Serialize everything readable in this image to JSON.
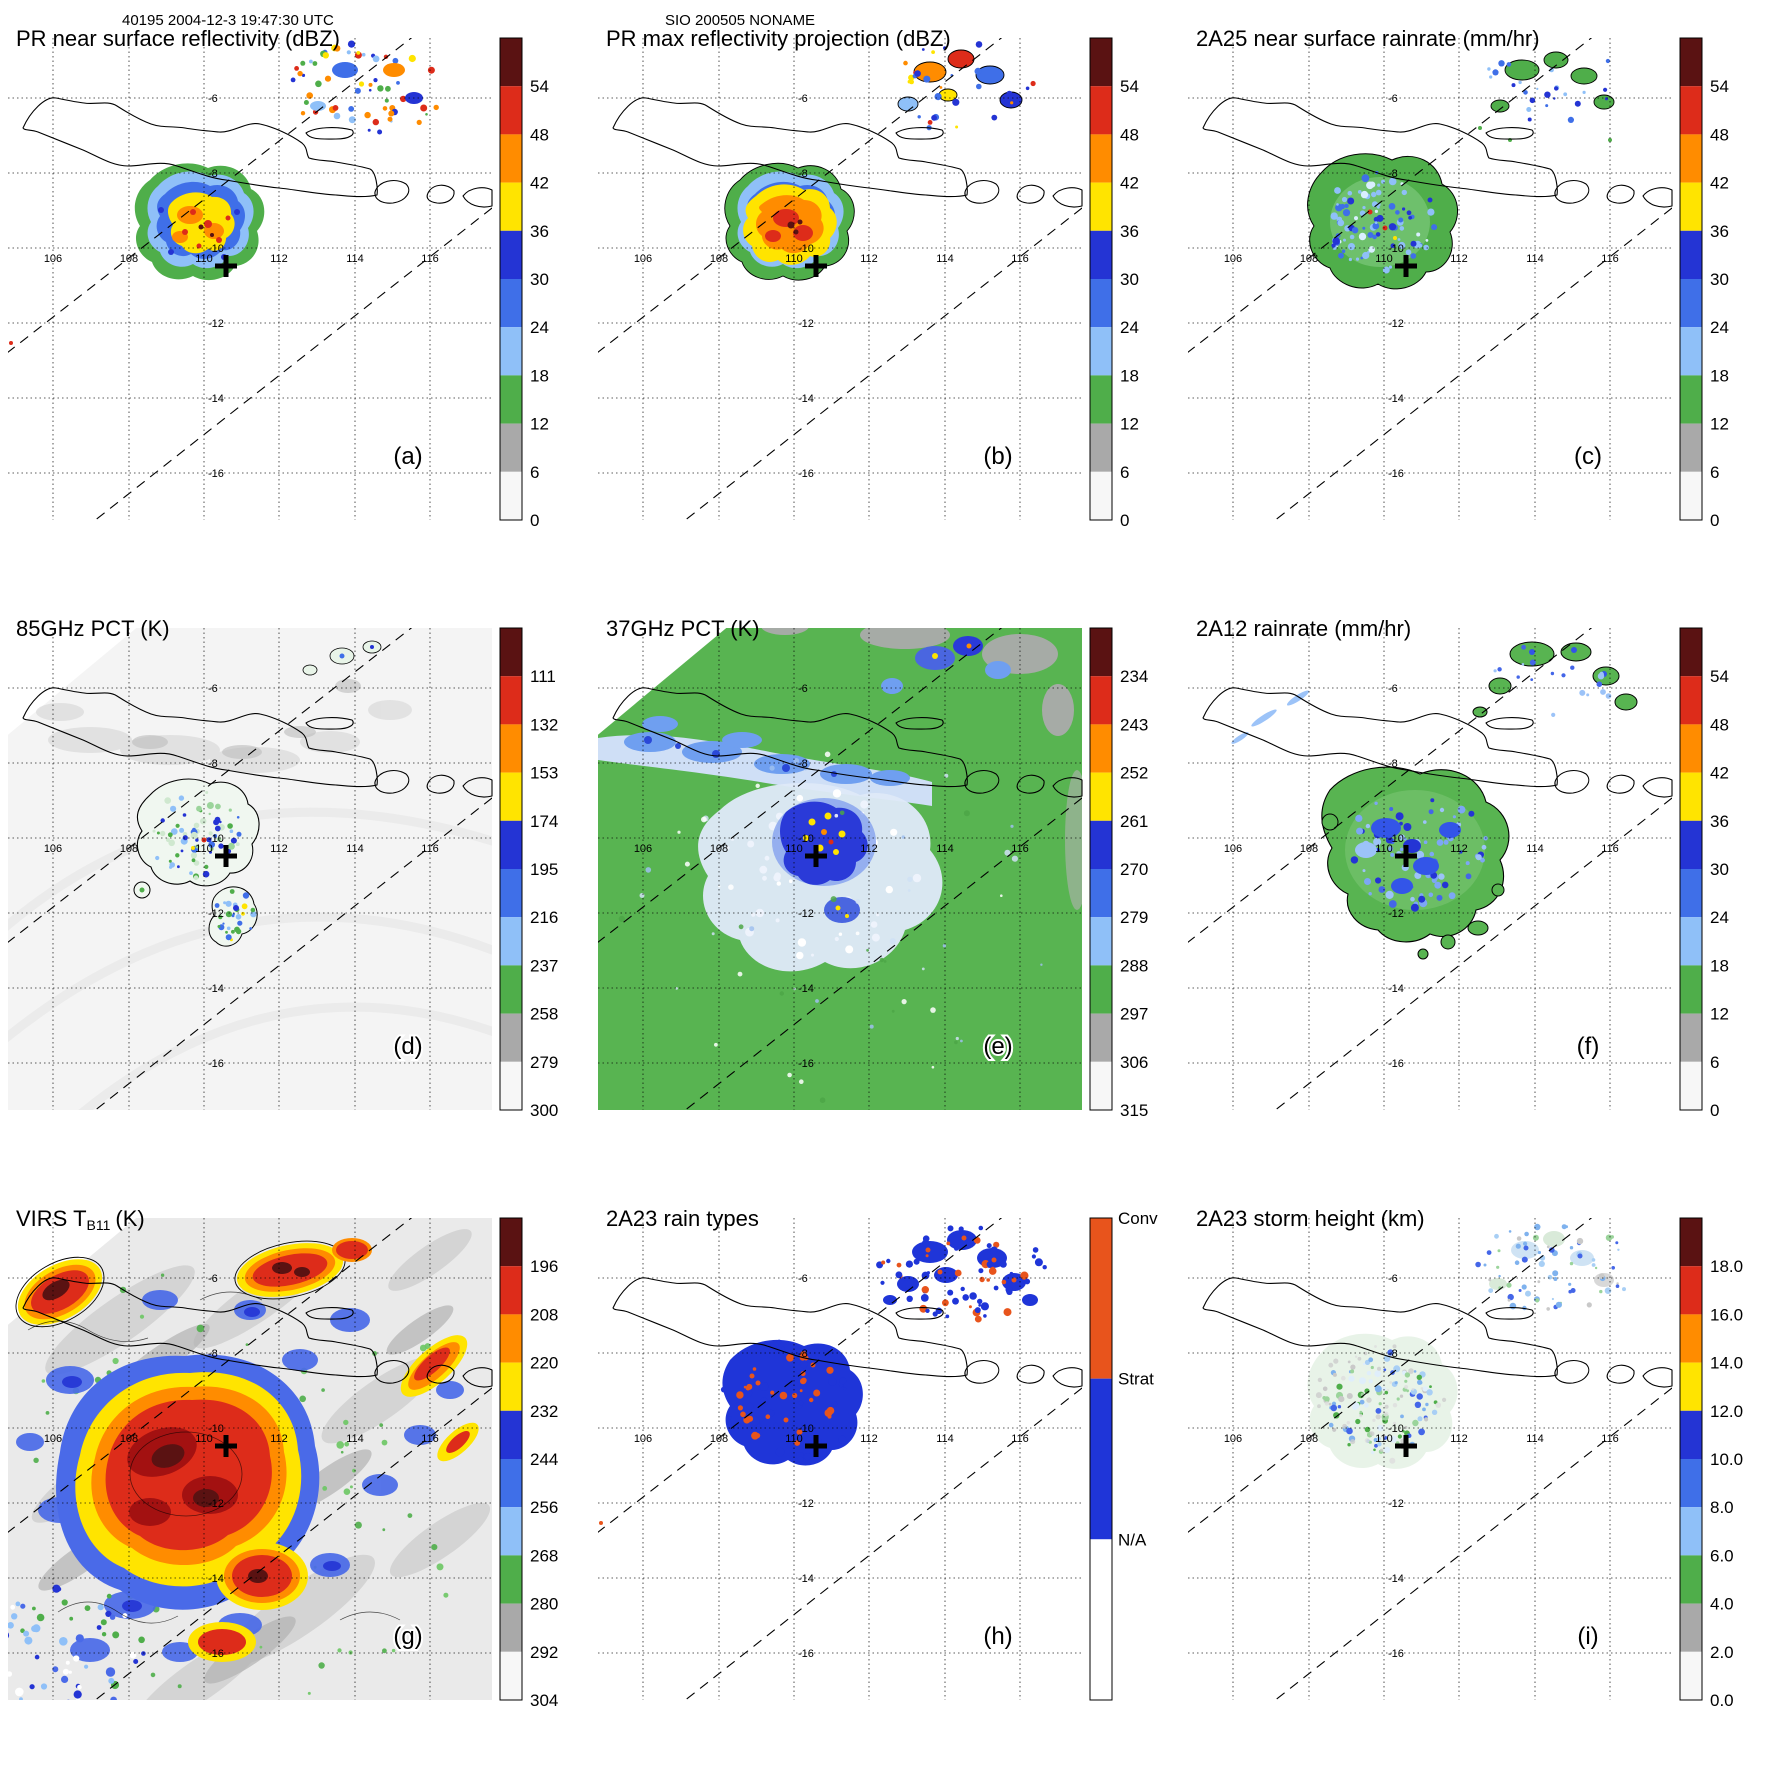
{
  "header": {
    "left": "40195 2004-12-3 19:47:30 UTC",
    "center": "SIO 200505 NONAME"
  },
  "map": {
    "lon_labels": [
      "106",
      "108",
      "110",
      "112",
      "114",
      "116"
    ],
    "lat_labels": [
      "-6",
      "-8",
      "-10",
      "-12",
      "-14",
      "-16"
    ]
  },
  "panels": [
    {
      "id": "a",
      "letter": "(a)",
      "title": "PR near surface reflectivity (dBZ)",
      "colorbar": {
        "ticks": [
          "54",
          "48",
          "42",
          "36",
          "30",
          "24",
          "18",
          "12",
          "6",
          "0"
        ],
        "colors": [
          "#5a1212",
          "#dd2c1a",
          "#ff8c00",
          "#ffe400",
          "#2434d4",
          "#3f6fe8",
          "#8fc0f8",
          "#4fae4a",
          "#a9a9a9",
          "#f7f7f7"
        ]
      }
    },
    {
      "id": "b",
      "letter": "(b)",
      "title": "PR max reflectivity projection (dBZ)",
      "colorbar": {
        "ticks": [
          "54",
          "48",
          "42",
          "36",
          "30",
          "24",
          "18",
          "12",
          "6",
          "0"
        ],
        "colors": [
          "#5a1212",
          "#dd2c1a",
          "#ff8c00",
          "#ffe400",
          "#2434d4",
          "#3f6fe8",
          "#8fc0f8",
          "#4fae4a",
          "#a9a9a9",
          "#f7f7f7"
        ]
      }
    },
    {
      "id": "c",
      "letter": "(c)",
      "title": "2A25 near surface rainrate (mm/hr)",
      "colorbar": {
        "ticks": [
          "54",
          "48",
          "42",
          "36",
          "30",
          "24",
          "18",
          "12",
          "6",
          "0"
        ],
        "colors": [
          "#5a1212",
          "#dd2c1a",
          "#ff8c00",
          "#ffe400",
          "#2434d4",
          "#3f6fe8",
          "#8fc0f8",
          "#4fae4a",
          "#a9a9a9",
          "#f7f7f7"
        ]
      }
    },
    {
      "id": "d",
      "letter": "(d)",
      "title": "85GHz PCT (K)",
      "colorbar": {
        "ticks": [
          "111",
          "132",
          "153",
          "174",
          "195",
          "216",
          "237",
          "258",
          "279",
          "300"
        ],
        "colors": [
          "#5a1212",
          "#dd2c1a",
          "#ff8c00",
          "#ffe400",
          "#2434d4",
          "#3f6fe8",
          "#8fc0f8",
          "#4fae4a",
          "#a9a9a9",
          "#f7f7f7"
        ]
      }
    },
    {
      "id": "e",
      "letter": "(e)",
      "title": "37GHz PCT (K)",
      "colorbar": {
        "ticks": [
          "234",
          "243",
          "252",
          "261",
          "270",
          "279",
          "288",
          "297",
          "306",
          "315"
        ],
        "colors": [
          "#5a1212",
          "#dd2c1a",
          "#ff8c00",
          "#ffe400",
          "#2434d4",
          "#3f6fe8",
          "#8fc0f8",
          "#4fae4a",
          "#a9a9a9",
          "#f7f7f7"
        ]
      }
    },
    {
      "id": "f",
      "letter": "(f)",
      "title": "2A12 rainrate (mm/hr)",
      "colorbar": {
        "ticks": [
          "54",
          "48",
          "42",
          "36",
          "30",
          "24",
          "18",
          "12",
          "6",
          "0"
        ],
        "colors": [
          "#5a1212",
          "#dd2c1a",
          "#ff8c00",
          "#ffe400",
          "#2434d4",
          "#3f6fe8",
          "#8fc0f8",
          "#4fae4a",
          "#a9a9a9",
          "#f7f7f7"
        ]
      }
    },
    {
      "id": "g",
      "letter": "(g)",
      "title": "VIRS T_B11 (K)",
      "title_pre": "VIRS T",
      "title_sub": "B11",
      "title_post": "(K)",
      "colorbar": {
        "ticks": [
          "196",
          "208",
          "220",
          "232",
          "244",
          "256",
          "268",
          "280",
          "292",
          "304"
        ],
        "colors": [
          "#5a1212",
          "#dd2c1a",
          "#ff8c00",
          "#ffe400",
          "#2434d4",
          "#3f6fe8",
          "#8fc0f8",
          "#4fae4a",
          "#a9a9a9",
          "#f7f7f7"
        ]
      }
    },
    {
      "id": "h",
      "letter": "(h)",
      "title": "2A23 rain types",
      "colorbar": {
        "type": "categorical",
        "labels": [
          "Conv",
          "Strat",
          "N/A"
        ],
        "colors": [
          "#e8541c",
          "#1f35d8",
          "#ffffff"
        ]
      }
    },
    {
      "id": "i",
      "letter": "(i)",
      "title": "2A23 storm height (km)",
      "colorbar": {
        "ticks": [
          "18.0",
          "16.0",
          "14.0",
          "12.0",
          "10.0",
          "8.0",
          "6.0",
          "4.0",
          "2.0",
          "0.0"
        ],
        "colors": [
          "#5a1212",
          "#dd2c1a",
          "#ff8c00",
          "#ffe400",
          "#2434d4",
          "#3f6fe8",
          "#8fc0f8",
          "#4fae4a",
          "#a9a9a9",
          "#f7f7f7"
        ]
      }
    }
  ],
  "chart_data": [
    {
      "panel": "a",
      "type": "heatmap",
      "title": "PR near surface reflectivity (dBZ)",
      "units": "dBZ",
      "colorbar_ticks": [
        54,
        48,
        42,
        36,
        30,
        24,
        18,
        12,
        6,
        0
      ],
      "lon_ticks": [
        106,
        108,
        110,
        112,
        114,
        116
      ],
      "lat_ticks": [
        -6,
        -8,
        -10,
        -12,
        -14,
        -16
      ],
      "lon_range": [
        104.8,
        117.6
      ],
      "lat_range": [
        -17.2,
        -4.4
      ],
      "features": [
        "convective storm near 110.3E 10.3S with 36-54 dBZ core and 12-30 dBZ fringe",
        "scattered 12-48 dBZ cells near 113-116E 5-7S",
        "black cross marker near 110.6E 10.5S",
        "dashed lines mark swath edges"
      ]
    },
    {
      "panel": "b",
      "type": "heatmap",
      "title": "PR max reflectivity projection (dBZ)",
      "units": "dBZ",
      "colorbar_ticks": [
        54,
        48,
        42,
        36,
        30,
        24,
        18,
        12,
        6,
        0
      ],
      "lon_ticks": [
        106,
        108,
        110,
        112,
        114,
        116
      ],
      "lat_ticks": [
        -6,
        -8,
        -10,
        -12,
        -14,
        -16
      ],
      "features": [
        "column-max reflectivity of same storm, mostly 36-54 dBZ (yellow-orange-red)",
        "stronger outlined cells near 113-116E 5-7S"
      ]
    },
    {
      "panel": "c",
      "type": "heatmap",
      "title": "2A25 near surface rainrate (mm/hr)",
      "units": "mm/hr",
      "colorbar_ticks": [
        54,
        48,
        42,
        36,
        30,
        24,
        18,
        12,
        6,
        0
      ],
      "lon_ticks": [
        106,
        108,
        110,
        112,
        114,
        116
      ],
      "lat_ticks": [
        -6,
        -8,
        -10,
        -12,
        -14,
        -16
      ],
      "features": [
        "rain area mostly 0-6 mm/hr (green) with embedded 12-30 mm/hr blue speckles",
        "small outlined rain cells to the northeast"
      ]
    },
    {
      "panel": "d",
      "type": "heatmap",
      "title": "85GHz PCT (K)",
      "units": "K",
      "colorbar_ticks": [
        111,
        132,
        153,
        174,
        195,
        216,
        237,
        258,
        279,
        300
      ],
      "lon_ticks": [
        106,
        108,
        110,
        112,
        114,
        116
      ],
      "lat_ticks": [
        -6,
        -8,
        -10,
        -12,
        -14,
        -16
      ],
      "features": [
        "background 258-300 K (white-gray)",
        "scattering depression blob 174-258 K outlined near 110E 10.5S with trailing cells to the south"
      ]
    },
    {
      "panel": "e",
      "type": "heatmap",
      "title": "37GHz PCT (K)",
      "units": "K",
      "colorbar_ticks": [
        234,
        243,
        252,
        261,
        270,
        279,
        288,
        297,
        306,
        315
      ],
      "lon_ticks": [
        106,
        108,
        110,
        112,
        114,
        116
      ],
      "lat_ticks": [
        -6,
        -8,
        -10,
        -12,
        -14,
        -16
      ],
      "features": [
        "swath background 279-288 K (green)",
        "pale 270-279 K band along Java and broad depression around storm",
        "core 243-261 K (dark blue with yellow specks) near 110.5E 10.2S",
        "gray = missing/no data patches"
      ]
    },
    {
      "panel": "f",
      "type": "heatmap",
      "title": "2A12 rainrate (mm/hr)",
      "units": "mm/hr",
      "colorbar_ticks": [
        54,
        48,
        42,
        36,
        30,
        24,
        18,
        12,
        6,
        0
      ],
      "lon_ticks": [
        106,
        108,
        110,
        112,
        114,
        116
      ],
      "lat_ticks": [
        -6,
        -8,
        -10,
        -12,
        -14,
        -16
      ],
      "features": [
        "broad 0-6 mm/hr (green) rain shield with 12-30 mm/hr blue cells",
        "arc of outlined rain cells near 113-116E 5-7S"
      ]
    },
    {
      "panel": "g",
      "type": "heatmap",
      "title": "VIRS T_B11 (K)",
      "units": "K",
      "colorbar_ticks": [
        196,
        208,
        220,
        232,
        244,
        256,
        268,
        280,
        292,
        304
      ],
      "lon_ticks": [
        106,
        108,
        110,
        112,
        114,
        116
      ],
      "lat_ticks": [
        -6,
        -8,
        -10,
        -12,
        -14,
        -16
      ],
      "features": [
        "large cold cloud shield <208 K (red/dark red) centered near 109.5E 11S",
        "yellow-orange 208-232 K anvil rim, blue 232-256 K ring",
        "additional cold tops along north Java and northeast",
        "warm background 280-304 K (gray/white) with black contours"
      ]
    },
    {
      "panel": "h",
      "type": "categorical_map",
      "title": "2A23 rain types",
      "categories": [
        "Conv",
        "Strat",
        "N/A"
      ],
      "lon_ticks": [
        106,
        108,
        110,
        112,
        114,
        116
      ],
      "lat_ticks": [
        -6,
        -8,
        -10,
        -12,
        -14,
        -16
      ],
      "features": [
        "storm area mostly stratiform (blue) with scattered convective (orange) pixels",
        "northeast rain area mixed stratiform/convective"
      ]
    },
    {
      "panel": "i",
      "type": "heatmap",
      "title": "2A23 storm height (km)",
      "units": "km",
      "colorbar_ticks": [
        18,
        16,
        14,
        12,
        10,
        8,
        6,
        4,
        2,
        0
      ],
      "lon_ticks": [
        106,
        108,
        110,
        112,
        114,
        116
      ],
      "lat_ticks": [
        -6,
        -8,
        -10,
        -12,
        -14,
        -16
      ],
      "features": [
        "echo tops mostly 4-8 km (gray/green) with 8-12 km (light blue/blue) speckles",
        "similar speckled cells to the northeast"
      ]
    }
  ]
}
